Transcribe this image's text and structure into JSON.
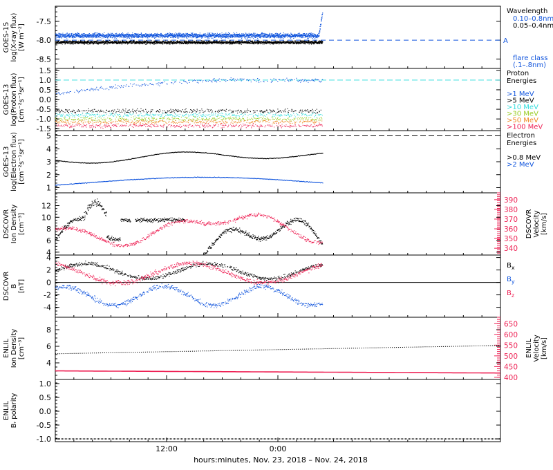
{
  "footer_label": "hours:minutes, Nov. 23, 2018 – Nov. 24, 2018",
  "x_ticks": [
    {
      "hour": 12,
      "label": "12:00"
    },
    {
      "hour": 24,
      "label": "0:00"
    }
  ],
  "x_range_hours": [
    0,
    48
  ],
  "colors": {
    "black": "#000000",
    "blue": "#1155dd",
    "cyan": "#33dddd",
    "green": "#99cc22",
    "orange": "#ee8822",
    "red": "#ee2255"
  },
  "chart_data": [
    {
      "type": "scatter",
      "ylabel_lines": [
        "GOES-15",
        "log(X-ray flux)",
        "[W m⁻²]"
      ],
      "ylim": [
        -8.75,
        -7.1
      ],
      "yticks": [
        "-7.5",
        "-8.0",
        "-8.5"
      ],
      "ytick_values": [
        -7.5,
        -8.0,
        -8.5
      ],
      "legend_title": [
        "Wavelength"
      ],
      "series": [
        {
          "name": "0.10–0.8nm",
          "color": "#1155dd",
          "base": -7.88,
          "amp": 0.09,
          "data_end_hour": 28.8
        },
        {
          "name": "0.05–0.4nm",
          "color": "#000000",
          "base": -8.06,
          "amp": 0.06,
          "data_end_hour": 28.8
        }
      ],
      "reference_lines": [
        {
          "value": -8.0,
          "color": "#1155dd",
          "label": "A"
        }
      ],
      "extra_legend": [
        "flare class",
        "(.1–.8nm)"
      ]
    },
    {
      "type": "scatter",
      "ylabel_lines": [
        "GOES-13",
        "log(Proton flux)",
        "[cm⁻²s⁻¹sr⁻¹]"
      ],
      "ylim": [
        -1.6,
        1.6
      ],
      "yticks": [
        "1.5",
        "1.0",
        "0.5",
        "0.0",
        "-0.5",
        "-1.0",
        "-1.5"
      ],
      "ytick_values": [
        1.5,
        1.0,
        0.5,
        0.0,
        -0.5,
        -1.0,
        -1.5
      ],
      "legend_title": [
        "Proton",
        "Energies"
      ],
      "series": [
        {
          "name": ">1 MeV",
          "color": "#1155dd"
        },
        {
          "name": ">5 MeV",
          "color": "#000000"
        },
        {
          "name": ">10 MeV",
          "color": "#33dddd"
        },
        {
          "name": ">30 MeV",
          "color": "#99cc22"
        },
        {
          "name": ">50 MeV",
          "color": "#ee8822"
        },
        {
          "name": ">100 MeV",
          "color": "#ee2255"
        }
      ],
      "reference_lines": [
        {
          "value": 1.0,
          "color": "#33dddd",
          "label": ""
        }
      ]
    },
    {
      "type": "line",
      "ylabel_lines": [
        "GOES-13",
        "log(Electron flux)",
        "[cm⁻²s⁻¹sr⁻¹]"
      ],
      "ylim": [
        0.6,
        5.4
      ],
      "yticks": [
        "5",
        "4",
        "3",
        "2",
        "1"
      ],
      "ytick_values": [
        5,
        4,
        3,
        2,
        1
      ],
      "legend_title": [
        "Electron",
        "Energies"
      ],
      "series": [
        {
          "name": ">0.8 MeV",
          "color": "#000000"
        },
        {
          "name": ">2 MeV",
          "color": "#1155dd"
        }
      ],
      "reference_lines": [
        {
          "value": 5.0,
          "color": "#000000",
          "label": ""
        }
      ]
    },
    {
      "type": "scatter",
      "ylabel_lines": [
        "DSCOVR",
        "Ion Density",
        "[cm⁻³]"
      ],
      "ylim": [
        3.5,
        14.2
      ],
      "yticks": [
        "12",
        "10",
        "8",
        "6",
        "4"
      ],
      "ytick_values": [
        12,
        10,
        8,
        6,
        4
      ],
      "right_ylabel_lines": [
        "DSCOVR",
        "Velocity",
        "[km/s]"
      ],
      "right_ylim": [
        333,
        397
      ],
      "right_yticks": [
        "390",
        "380",
        "370",
        "360",
        "350",
        "340"
      ],
      "right_ytick_values": [
        390,
        380,
        370,
        360,
        350,
        340
      ],
      "right_color": "#ee2255"
    },
    {
      "type": "scatter",
      "ylabel_lines": [
        "DSCOVR",
        "B",
        "[nT]"
      ],
      "ylim": [
        -5.6,
        4.4
      ],
      "yticks": [
        "4",
        "2",
        "0",
        "-2",
        "-4"
      ],
      "ytick_values": [
        4,
        2,
        0,
        -2,
        -4
      ],
      "series": [
        {
          "name": "Bx",
          "color": "#000000"
        },
        {
          "name": "By",
          "color": "#1155dd"
        },
        {
          "name": "Bz",
          "color": "#ee2255"
        }
      ],
      "legend_subs": [
        "x",
        "y",
        "z"
      ],
      "reference_lines": [
        {
          "value": 0,
          "color": "#000000",
          "label": ""
        }
      ]
    },
    {
      "type": "line",
      "ylabel_lines": [
        "ENLIL",
        "Ion Density",
        "[cm⁻³]"
      ],
      "ylim": [
        2.0,
        9.5
      ],
      "yticks": [
        "8",
        "6",
        "4"
      ],
      "ytick_values": [
        8,
        6,
        4
      ],
      "right_ylabel_lines": [
        "ENLIL",
        "Velocity",
        "[km/s]"
      ],
      "right_ylim": [
        390,
        680
      ],
      "right_yticks": [
        "650",
        "600",
        "550",
        "500",
        "450",
        "400"
      ],
      "right_ytick_values": [
        650,
        600,
        550,
        500,
        450,
        400
      ],
      "right_color": "#ee2255"
    },
    {
      "type": "line",
      "ylabel_lines": [
        "ENLIL",
        "Bᵣ polarity"
      ],
      "ylim": [
        -1.1,
        1.15
      ],
      "yticks": [
        "1.0",
        "0.5",
        "0.0",
        "-0.5",
        "-1.0"
      ],
      "ytick_values": [
        1.0,
        0.5,
        0.0,
        -0.5,
        -1.0
      ],
      "series": [
        {
          "name": "",
          "color": "#000000",
          "value": -1.0
        }
      ]
    }
  ]
}
